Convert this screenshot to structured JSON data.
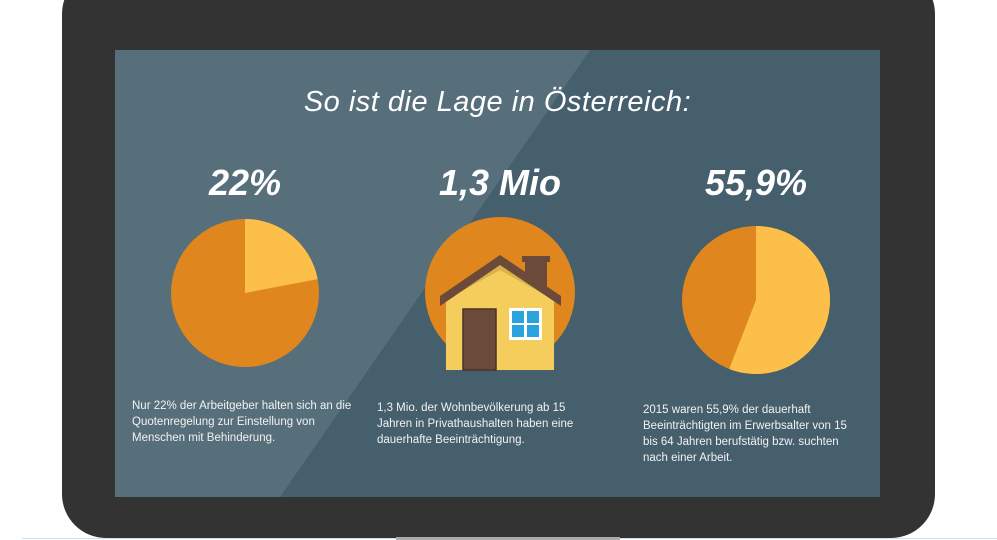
{
  "title": "So ist die Lage in Österreich:",
  "stats": [
    {
      "value": "22%",
      "description": "Nur 22% der Arbeitgeber halten sich an die Quotenregelung zur Einstellung von Menschen mit Behinderung.",
      "pie_percent": 22
    },
    {
      "value": "1,3 Mio",
      "description": "1,3 Mio. der Wohnbevölkerung ab 15 Jahren in Privathaushalten haben eine dauerhafte Beeinträchtigung.",
      "icon": "house-icon"
    },
    {
      "value": "55,9%",
      "description": "2015 waren 55,9% der dauerhaft Beeinträchtigten im Erwerbsalter von 15 bis 64 Jahren berufstätig bzw. suchten nach einer Arbeit.",
      "pie_percent": 55.9
    }
  ],
  "colors": {
    "highlight": "#fcbf4a",
    "base": "#df861e",
    "screen": "#455f6d",
    "frame": "#333333"
  }
}
